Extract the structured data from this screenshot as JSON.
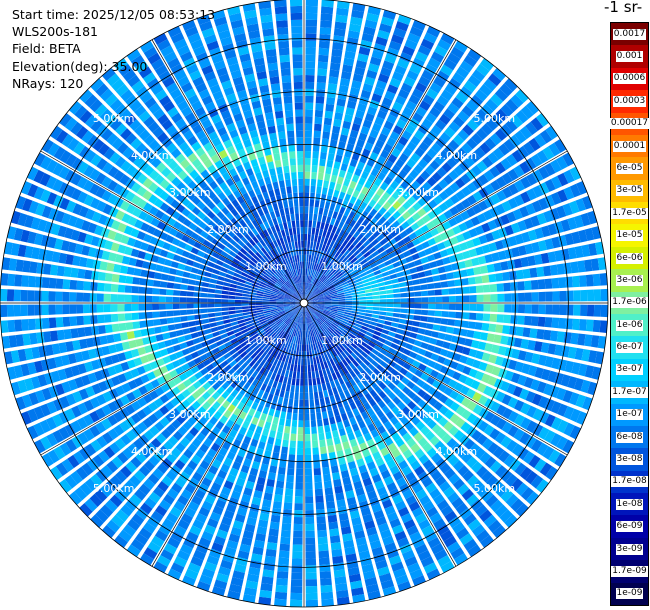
{
  "header": {
    "start_time": "Start time: 2025/12/05 08:53:13",
    "instrument": "WLS200s-181",
    "field": "Field: BETA",
    "elevation": "Elevation(deg): 35.00",
    "nrays": "NRays: 120"
  },
  "colorbar": {
    "title_fragment": "-1 sr-",
    "levels": [
      "0.0017",
      "0.001",
      "0.0006",
      "0.0003",
      "0.00017",
      "0.0001",
      "6e-05",
      "3e-05",
      "1.7e-05",
      "1e-05",
      "6e-06",
      "3e-06",
      "1.7e-06",
      "1e-06",
      "6e-07",
      "3e-07",
      "1.7e-07",
      "1e-07",
      "6e-08",
      "3e-08",
      "1.7e-08",
      "1e-08",
      "6e-09",
      "3e-09",
      "1.7e-09",
      "1e-09"
    ],
    "colors": [
      "#7a0000",
      "#b00000",
      "#e00000",
      "#ff2a00",
      "#ff5500",
      "#ff7a00",
      "#ff9900",
      "#ffbb00",
      "#ffdd00",
      "#f5f500",
      "#d5f000",
      "#a8f050",
      "#7ff0a0",
      "#50f0c8",
      "#20e0f0",
      "#00d0ff",
      "#00b8ff",
      "#0099ff",
      "#0077ee",
      "#0055dd",
      "#0033cc",
      "#0015bb",
      "#0000a8",
      "#000090",
      "#000070",
      "#000050"
    ]
  },
  "chart_data": {
    "type": "polar-ppi",
    "field": "BETA",
    "elevation_deg": 35.0,
    "n_rays": 120,
    "range_rings_km": [
      1,
      2,
      3,
      4,
      5
    ],
    "ring_labels": [
      "1.00km",
      "2.00km",
      "3.00km",
      "4.00km",
      "5.00km"
    ],
    "max_range_km": 5.75,
    "spokes_deg": [
      0,
      30,
      60,
      90,
      120,
      150,
      180,
      210,
      240,
      270,
      300,
      330
    ],
    "grid": true
  }
}
